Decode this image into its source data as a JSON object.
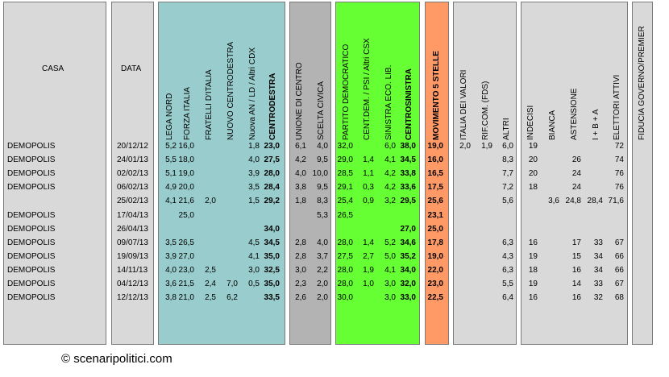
{
  "header": {
    "casa": "CASA",
    "data": "DATA",
    "columns": [
      "LEGA NORD",
      "FORZA ITALIA",
      "FRATELLI D'ITALIA",
      "NUOVO CENTRODESTRA",
      "Nuova AN / LD / Altri CDX",
      "CENTRODESTRA",
      "UNIONE DI CENTRO",
      "SCELTA CIVICA",
      "PARTITO DEMOCRATICO",
      "CENT.DEM. / PSI / Altri CSX",
      "SINISTRA ECO. LIB.",
      "CENTROSINISTRA",
      "MOVIMENTO 5 STELLE",
      "ITALIA DEI VALORI",
      "RIF.COM. (FDS)",
      "ALTRI",
      "INDECISI",
      "BIANCA",
      "ASTENSIONE",
      "I + B + A",
      "ELETTORI ATTIVI",
      "FIDUCIA GOVERNO/PREMIER"
    ]
  },
  "colors": {
    "centrodestra": "#99cccc",
    "centro": "#b3b3b3",
    "centrosinistra": "#66ff33",
    "m5s": "#ff9966",
    "other": "#d9d9d9",
    "bright_green": "#66ff33"
  },
  "rows": [
    {
      "casa": "DEMOPOLIS",
      "data": "20/12/12",
      "v": [
        "5,2",
        "16,0",
        "",
        "",
        "1,8",
        "23,0",
        "6,1",
        "4,0",
        "32,0",
        "",
        "6,0",
        "38,0",
        "19,0",
        "2,0",
        "1,9",
        "6,0",
        "19",
        "",
        "",
        "",
        "72",
        ""
      ]
    },
    {
      "casa": "DEMOPOLIS",
      "data": "24/01/13",
      "v": [
        "5,5",
        "18,0",
        "",
        "",
        "4,0",
        "27,5",
        "4,2",
        "9,5",
        "29,0",
        "1,4",
        "4,1",
        "34,5",
        "16,0",
        "",
        "",
        "8,3",
        "20",
        "",
        "26",
        "",
        "74",
        ""
      ]
    },
    {
      "casa": "DEMOPOLIS",
      "data": "02/02/13",
      "v": [
        "5,1",
        "19,0",
        "",
        "",
        "3,9",
        "28,0",
        "4,0",
        "10,0",
        "28,5",
        "1,1",
        "4,2",
        "33,8",
        "16,5",
        "",
        "",
        "7,7",
        "20",
        "",
        "24",
        "",
        "76",
        ""
      ]
    },
    {
      "casa": "DEMOPOLIS",
      "data": "06/02/13",
      "v": [
        "4,9",
        "20,0",
        "",
        "",
        "3,5",
        "28,4",
        "3,8",
        "9,5",
        "29,1",
        "0,3",
        "4,2",
        "33,6",
        "17,5",
        "",
        "",
        "7,2",
        "18",
        "",
        "24",
        "",
        "76",
        ""
      ]
    },
    {
      "casa": "",
      "data": "25/02/13",
      "v": [
        "4,1",
        "21,6",
        "2,0",
        "",
        "1,5",
        "29,2",
        "1,8",
        "8,3",
        "25,4",
        "0,9",
        "3,2",
        "29,5",
        "25,6",
        "",
        "",
        "5,6",
        "",
        "3,6",
        "24,8",
        "28,4",
        "71,6",
        ""
      ]
    },
    {
      "casa": "DEMOPOLIS",
      "data": "17/04/13",
      "v": [
        "",
        "25,0",
        "",
        "",
        "",
        "",
        "",
        "5,3",
        "26,5",
        "",
        "",
        "",
        "23,1",
        "",
        "",
        "",
        "",
        "",
        "",
        "",
        "",
        ""
      ]
    },
    {
      "casa": "DEMOPOLIS",
      "data": "26/04/13",
      "v": [
        "",
        "",
        "",
        "",
        "",
        "34,0",
        "",
        "",
        "",
        "",
        "",
        "27,0",
        "25,0",
        "",
        "",
        "",
        "",
        "",
        "",
        "",
        "",
        ""
      ]
    },
    {
      "casa": "DEMOPOLIS",
      "data": "09/07/13",
      "v": [
        "3,5",
        "26,5",
        "",
        "",
        "4,5",
        "34,5",
        "2,8",
        "4,0",
        "28,0",
        "1,4",
        "5,2",
        "34,6",
        "17,8",
        "",
        "",
        "6,3",
        "16",
        "",
        "17",
        "33",
        "67",
        ""
      ]
    },
    {
      "casa": "DEMOPOLIS",
      "data": "19/09/13",
      "v": [
        "3,9",
        "27,0",
        "",
        "",
        "4,1",
        "35,0",
        "2,8",
        "3,7",
        "27,5",
        "2,7",
        "5,0",
        "35,2",
        "19,0",
        "",
        "",
        "4,3",
        "19",
        "",
        "15",
        "34",
        "66",
        ""
      ]
    },
    {
      "casa": "DEMOPOLIS",
      "data": "14/11/13",
      "v": [
        "4,0",
        "23,0",
        "2,5",
        "",
        "3,0",
        "32,5",
        "3,0",
        "2,2",
        "28,0",
        "1,9",
        "4,1",
        "34,0",
        "22,0",
        "",
        "",
        "6,3",
        "18",
        "",
        "16",
        "34",
        "66",
        ""
      ]
    },
    {
      "casa": "DEMOPOLIS",
      "data": "04/12/13",
      "v": [
        "3,6",
        "21,5",
        "2,4",
        "7,0",
        "0,5",
        "35,0",
        "2,3",
        "2,0",
        "28,0",
        "1,0",
        "3,0",
        "32,0",
        "23,0",
        "",
        "",
        "5,5",
        "19",
        "",
        "14",
        "33",
        "67",
        ""
      ]
    },
    {
      "casa": "DEMOPOLIS",
      "data": "12/12/13",
      "v": [
        "3,8",
        "21,0",
        "2,5",
        "6,2",
        "",
        "33,5",
        "2,6",
        "2,0",
        "30,0",
        "",
        "3,0",
        "33,0",
        "22,5",
        "",
        "",
        "6,4",
        "16",
        "",
        "16",
        "32",
        "68",
        ""
      ]
    }
  ],
  "footer": "© scenaripolitici.com"
}
